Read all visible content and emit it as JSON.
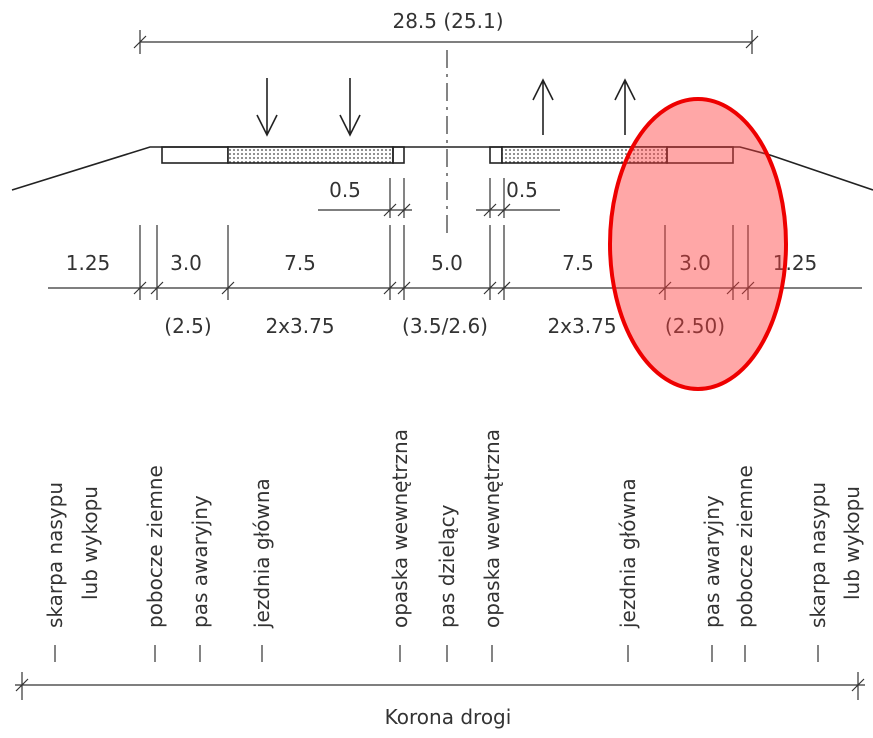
{
  "overall_width": "28.5 (25.1)",
  "small_dims": [
    "0.5",
    "0.5"
  ],
  "dims_top": [
    "1.25",
    "3.0",
    "7.5",
    "5.0",
    "7.5",
    "3.0",
    "1.25"
  ],
  "dims_bottom": [
    "(2.5)",
    "2x3.75",
    "(3.5/2.6)",
    "2x3.75",
    "(2.50)"
  ],
  "labels": [
    "skarpa nasypu",
    "lub wykopu",
    "pobocze ziemne",
    "pas awaryjny",
    "jezdnia główna",
    "opaska wewnętrzna",
    "pas dzielący",
    "opaska wewnętrzna",
    "jezdnia główna",
    "pas awaryjny",
    "pobocze ziemne",
    "skarpa nasypu",
    "lub wykopu"
  ],
  "footer": "Korona drogi"
}
